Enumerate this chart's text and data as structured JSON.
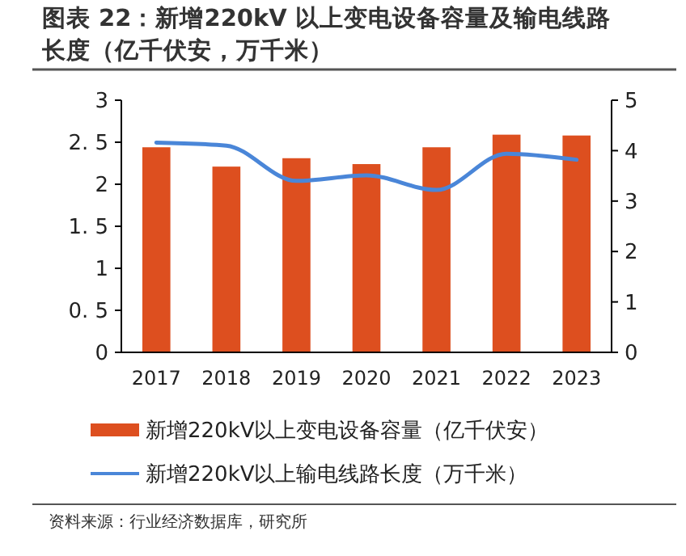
{
  "chart_data": {
    "type": "bar",
    "title": "图表 22：新增220kV 以上变电设备容量及输电线路长度（亿千伏安，万千米）",
    "categories": [
      "2017",
      "2018",
      "2019",
      "2020",
      "2021",
      "2022",
      "2023"
    ],
    "series": [
      {
        "name": "新增220kV以上变电设备容量（亿千伏安）",
        "color": "#dd4f1f",
        "values": [
          2.44,
          2.21,
          2.31,
          2.24,
          2.44,
          2.59,
          2.58
        ]
      },
      {
        "name": "新增220kV以上输电线路长度（万千米）",
        "type": "line",
        "axis": "y2",
        "color": "#4a86d8",
        "values": [
          4.16,
          4.1,
          3.4,
          3.51,
          3.22,
          3.94,
          3.82
        ]
      }
    ],
    "ylim": [
      0,
      3
    ],
    "yticks": [
      0,
      {
        "value": 0.5,
        "label": "0. 5"
      },
      1,
      {
        "value": 1.5,
        "label": "1. 5"
      },
      2,
      {
        "value": 2.5,
        "label": "2. 5"
      },
      3
    ],
    "y2lim": [
      0,
      5
    ],
    "y2ticks": [
      0,
      1,
      2,
      3,
      4,
      5
    ],
    "legend": "bottom",
    "grid": false,
    "annotations": [
      "资料来源：行业经济数据库，研究所"
    ]
  }
}
